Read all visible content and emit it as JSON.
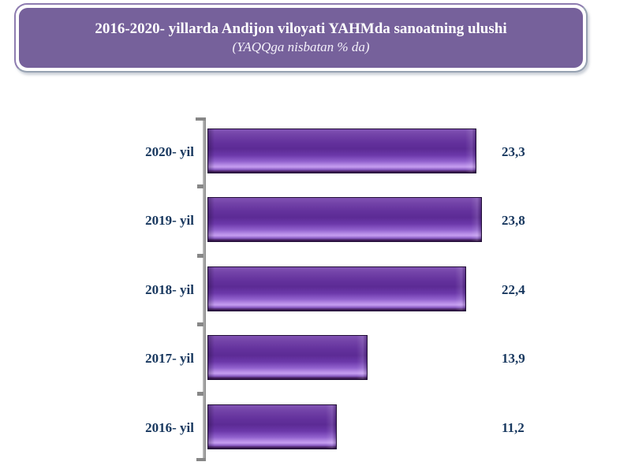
{
  "header": {
    "title_line1": "2016-2020- yillarda Andijon viloyati YAHMda sanoatning ulushi",
    "title_line2": "(YAQQga nisbatan % da)"
  },
  "colors": {
    "banner_bg": "#76619b",
    "banner_border_purple": "#8e7cb0",
    "banner_border_gray": "#97a2b2",
    "bar_purple_dark": "#5c2b95",
    "bar_purple_highlight": "#c59df0",
    "label_text": "#17375e",
    "axis": "#878787",
    "title_text": "#ffffff"
  },
  "chart_data": {
    "type": "bar",
    "orientation": "horizontal",
    "title": "2016-2020- yillarda Andijon viloyati YAHMda sanoatning ulushi",
    "subtitle": "(YAQQga nisbatan % da)",
    "categories": [
      "2020- yil",
      "2019- yil",
      "2018- yil",
      "2017- yil",
      "2016- yil"
    ],
    "values": [
      23.3,
      23.8,
      22.4,
      13.9,
      11.2
    ],
    "value_labels": [
      "23,3",
      "23,8",
      "22,4",
      "13,9",
      "11,2"
    ],
    "unit": "%",
    "xlabel": "",
    "ylabel": "",
    "xlim": [
      0,
      24.6
    ],
    "grid": false,
    "legend": false,
    "bar_style": "3d-bevel",
    "bar_color": "#6a34a4"
  }
}
